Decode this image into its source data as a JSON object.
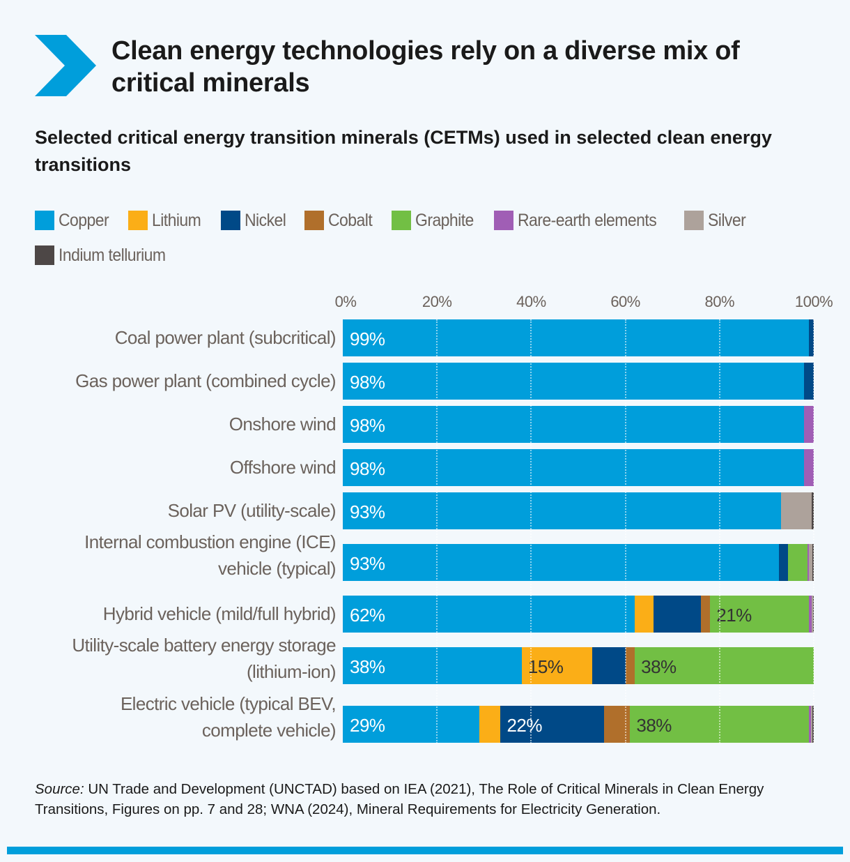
{
  "header": {
    "title": "Clean energy technologies rely on a diverse mix of critical minerals",
    "subtitle": "Selected critical energy transition minerals (CETMs) used in selected clean energy transitions",
    "accent_color": "#009edb"
  },
  "source": {
    "prefix": "Source:",
    "text": " UN Trade and Development (UNCTAD) based on IEA (2021), The Role of Critical Minerals in Clean Energy Transitions, Figures on pp. 7 and 28; WNA (2024), Mineral Requirements for Electricity Generation."
  },
  "chart_data": {
    "type": "bar",
    "orientation": "horizontal",
    "stacked": true,
    "xlim": [
      0,
      100
    ],
    "x_ticks": [
      "0%",
      "20%",
      "40%",
      "60%",
      "80%",
      "100%"
    ],
    "grid": "vertical dotted",
    "legend_position": "top",
    "categories": [
      "Coal power plant (subcritical)",
      "Gas power plant (combined cycle)",
      "Onshore wind",
      "Offshore wind",
      "Solar PV (utility-scale)",
      "Internal combustion engine (ICE) vehicle (typical)",
      "Hybrid vehicle (mild/full hybrid)",
      "Utility-scale battery energy storage (lithium-ion)",
      "Electric vehicle (typical BEV, complete vehicle)"
    ],
    "series": [
      {
        "name": "Copper",
        "color": "#009edb",
        "values": [
          99,
          98,
          98,
          98,
          93,
          92.6,
          62,
          38,
          29
        ]
      },
      {
        "name": "Lithium",
        "color": "#fbae17",
        "values": [
          0,
          0,
          0,
          0,
          0,
          0,
          4,
          15,
          4.5
        ]
      },
      {
        "name": "Nickel",
        "color": "#004987",
        "values": [
          1,
          2,
          0,
          0,
          0,
          2,
          10,
          7,
          22
        ]
      },
      {
        "name": "Cobalt",
        "color": "#b06f2b",
        "values": [
          0,
          0,
          0,
          0,
          0,
          0,
          2,
          2,
          5.5
        ]
      },
      {
        "name": "Graphite",
        "color": "#72bf44",
        "values": [
          0,
          0,
          0,
          0,
          0,
          4,
          21,
          38,
          38
        ]
      },
      {
        "name": "Rare-earth elements",
        "color": "#a05eb5",
        "values": [
          0,
          0,
          2,
          2,
          0,
          0.3,
          0.6,
          0,
          0.4
        ]
      },
      {
        "name": "Silver",
        "color": "#ada29b",
        "values": [
          0,
          0,
          0,
          0,
          6.5,
          0.8,
          0.3,
          0,
          0.3
        ]
      },
      {
        "name": "Indium tellurium",
        "color": "#4d4746",
        "values": [
          0,
          0,
          0,
          0,
          0.5,
          0.3,
          0.1,
          0,
          0.3
        ]
      }
    ],
    "data_labels": [
      [
        {
          "series": 0,
          "text": "99%"
        }
      ],
      [
        {
          "series": 0,
          "text": "98%"
        }
      ],
      [
        {
          "series": 0,
          "text": "98%"
        }
      ],
      [
        {
          "series": 0,
          "text": "98%"
        }
      ],
      [
        {
          "series": 0,
          "text": "93%"
        }
      ],
      [
        {
          "series": 0,
          "text": "93%"
        }
      ],
      [
        {
          "series": 0,
          "text": "62%"
        },
        {
          "series": 4,
          "text": "21%"
        }
      ],
      [
        {
          "series": 0,
          "text": "38%"
        },
        {
          "series": 1,
          "text": "15%"
        },
        {
          "series": 4,
          "text": "38%"
        }
      ],
      [
        {
          "series": 0,
          "text": "29%"
        },
        {
          "series": 2,
          "text": "22%"
        },
        {
          "series": 4,
          "text": "38%"
        }
      ]
    ]
  }
}
